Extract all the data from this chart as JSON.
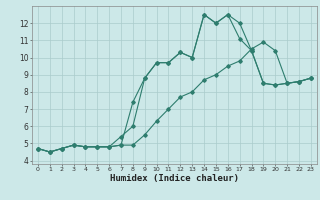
{
  "xlabel": "Humidex (Indice chaleur)",
  "bg_color": "#cce8e8",
  "grid_color": "#aacccc",
  "line_color": "#2e7d6e",
  "xlim": [
    -0.5,
    23.5
  ],
  "ylim": [
    3.8,
    13.0
  ],
  "xticks": [
    0,
    1,
    2,
    3,
    4,
    5,
    6,
    7,
    8,
    9,
    10,
    11,
    12,
    13,
    14,
    15,
    16,
    17,
    18,
    19,
    20,
    21,
    22,
    23
  ],
  "yticks": [
    4,
    5,
    6,
    7,
    8,
    9,
    10,
    11,
    12
  ],
  "line1_x": [
    0,
    1,
    2,
    3,
    4,
    5,
    6,
    7,
    8,
    9,
    10,
    11,
    12,
    13,
    14,
    15,
    16,
    17,
    18,
    19,
    20,
    21,
    22,
    23
  ],
  "line1_y": [
    4.7,
    4.5,
    4.7,
    4.9,
    4.8,
    4.8,
    4.8,
    4.9,
    7.4,
    8.8,
    9.7,
    9.7,
    10.3,
    10.0,
    12.5,
    12.0,
    12.5,
    12.0,
    10.4,
    8.5,
    8.4,
    8.5,
    8.6,
    8.8
  ],
  "line2_x": [
    0,
    1,
    2,
    3,
    4,
    5,
    6,
    7,
    8,
    9,
    10,
    11,
    12,
    13,
    14,
    15,
    16,
    17,
    18,
    19,
    20,
    21,
    22,
    23
  ],
  "line2_y": [
    4.7,
    4.5,
    4.7,
    4.9,
    4.8,
    4.8,
    4.8,
    5.4,
    6.0,
    8.8,
    9.7,
    9.7,
    10.3,
    10.0,
    12.5,
    12.0,
    12.5,
    11.1,
    10.4,
    8.5,
    8.4,
    8.5,
    8.6,
    8.8
  ],
  "line3_x": [
    0,
    1,
    2,
    3,
    4,
    5,
    6,
    7,
    8,
    9,
    10,
    11,
    12,
    13,
    14,
    15,
    16,
    17,
    18,
    19,
    20,
    21,
    22,
    23
  ],
  "line3_y": [
    4.7,
    4.5,
    4.7,
    4.9,
    4.8,
    4.8,
    4.8,
    4.9,
    4.9,
    5.5,
    6.3,
    7.0,
    7.7,
    8.0,
    8.7,
    9.0,
    9.5,
    9.8,
    10.5,
    10.9,
    10.4,
    8.5,
    8.6,
    8.8
  ]
}
